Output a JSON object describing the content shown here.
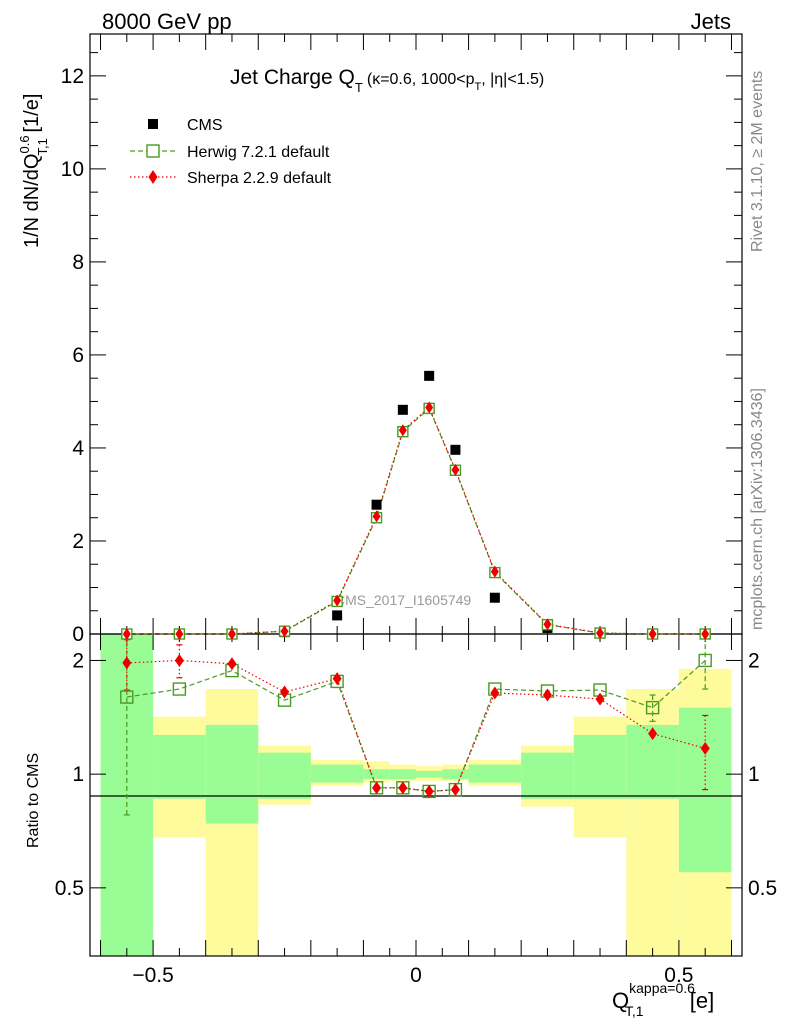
{
  "header": {
    "left": "8000 GeV pp",
    "right": "Jets"
  },
  "side_text": {
    "top": "Rivet 3.1.10, ≥ 2M events",
    "bottom": "mcplots.cern.ch [arXiv:1306.3436]"
  },
  "watermark": "CMS_2017_I1605749",
  "chart_data": {
    "type": "scatter",
    "title": {
      "main": "Jet Charge Q",
      "main_sub": "T",
      "detail_a": "(κ=0.6, 1000<p",
      "detail_sub": "T",
      "detail_b": ", |η|<1.5)"
    },
    "ylabel": {
      "a": "1/N dN/dQ",
      "sup": "0.6",
      "sub": "T,1",
      "b": " [1/e]"
    },
    "xlabel": {
      "a": "Q",
      "sup": "kappa=0.6",
      "sub": "T,1",
      "b": " [e]"
    },
    "ratio_ylabel": "Ratio to CMS",
    "xlim": [
      -0.62,
      0.62
    ],
    "ylim": [
      0,
      12.9
    ],
    "ratio_ylim": [
      0.33,
      2.35
    ],
    "x_ticks": [
      -0.5,
      0,
      0.5
    ],
    "x_tick_labels": [
      "−0.5",
      "0",
      "0.5"
    ],
    "y_ticks": [
      0,
      2,
      4,
      6,
      8,
      10,
      12
    ],
    "y_tick_labels": [
      "0",
      "2",
      "4",
      "6",
      "8",
      "10",
      "12"
    ],
    "ratio_ticks": [
      0.5,
      1,
      2
    ],
    "ratio_tick_labels": [
      "0.5",
      "1",
      "2"
    ],
    "legend_position": "top-left",
    "x": [
      -0.55,
      -0.45,
      -0.35,
      -0.25,
      -0.15,
      -0.075,
      -0.025,
      0.025,
      0.075,
      0.15,
      0.25,
      0.35,
      0.45,
      0.55
    ],
    "bin_edges": [
      -0.6,
      -0.5,
      -0.4,
      -0.3,
      -0.2,
      -0.1,
      -0.05,
      0,
      0.05,
      0.1,
      0.2,
      0.3,
      0.4,
      0.5,
      0.6
    ],
    "series": [
      {
        "name": "CMS",
        "color": "#000000",
        "marker": "square-filled",
        "values": [
          0.0,
          0.0,
          0.0,
          0.04,
          0.4,
          2.78,
          4.82,
          5.55,
          3.96,
          0.78,
          0.13,
          0.01,
          0.0,
          0.0
        ]
      },
      {
        "name": "Herwig 7.2.1 default",
        "color": "#4a9a22",
        "marker": "square-open",
        "linestyle": "dashed",
        "values": [
          0.0,
          0.0,
          0.0,
          0.06,
          0.7,
          2.5,
          4.35,
          4.85,
          3.52,
          1.32,
          0.2,
          0.02,
          0.0,
          0.0
        ],
        "ratio": [
          1.6,
          1.68,
          1.88,
          1.57,
          1.76,
          0.92,
          0.92,
          0.9,
          0.91,
          1.68,
          1.66,
          1.67,
          1.5,
          2.0
        ],
        "ratio_err": [
          0.82,
          0.0,
          0.0,
          0.0,
          0.0,
          0.0,
          0.0,
          0.0,
          0.0,
          0.0,
          0.0,
          0.0,
          0.12,
          0.32
        ]
      },
      {
        "name": "Sherpa 2.2.9 default",
        "color": "#ee0000",
        "marker": "diamond-filled",
        "linestyle": "dotted",
        "values": [
          0.0,
          0.0,
          0.0,
          0.06,
          0.72,
          2.53,
          4.38,
          4.87,
          3.53,
          1.34,
          0.21,
          0.02,
          0.0,
          0.0
        ],
        "ratio": [
          1.97,
          2.0,
          1.96,
          1.65,
          1.79,
          0.92,
          0.92,
          0.9,
          0.91,
          1.64,
          1.62,
          1.58,
          1.28,
          1.17
        ],
        "ratio_err": [
          0.3,
          0.2,
          0.0,
          0.0,
          0.0,
          0.0,
          0.0,
          0.0,
          0.0,
          0.0,
          0.0,
          0.0,
          0.0,
          0.26
        ]
      }
    ],
    "uncertainty_bands": {
      "stat_color": "#9afc94",
      "total_color": "#fdfb9b",
      "stat_up": [
        2.4,
        1.27,
        1.35,
        1.14,
        1.06,
        1.03,
        1.03,
        1.02,
        1.03,
        1.06,
        1.14,
        1.27,
        1.35,
        1.5
      ],
      "stat_down": [
        0.33,
        0.86,
        0.74,
        0.86,
        0.95,
        0.97,
        0.97,
        0.98,
        0.97,
        0.95,
        0.86,
        0.86,
        0.86,
        0.55
      ],
      "total_up": [
        2.4,
        1.42,
        1.68,
        1.19,
        1.09,
        1.08,
        1.06,
        1.05,
        1.06,
        1.09,
        1.19,
        1.42,
        1.68,
        1.9
      ],
      "total_down": [
        0.33,
        0.68,
        0.33,
        0.83,
        0.93,
        0.95,
        0.96,
        0.96,
        0.96,
        0.93,
        0.82,
        0.68,
        0.33,
        0.33
      ]
    }
  }
}
